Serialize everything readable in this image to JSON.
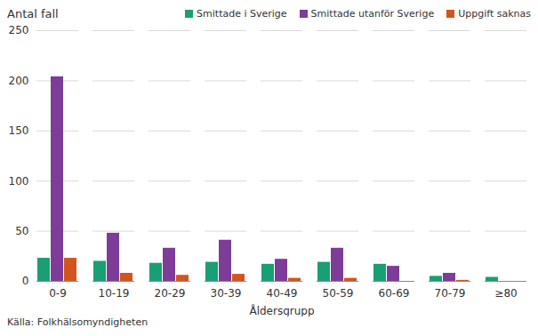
{
  "chart_data": {
    "type": "bar",
    "y_label": "Antal fall",
    "x_label": "Åldersgrupp",
    "source": "Källa: Folkhälsomyndigheten",
    "categories": [
      "0-9",
      "10-19",
      "20-29",
      "30-39",
      "40-49",
      "50-59",
      "60-69",
      "70-79",
      "≥80"
    ],
    "series": [
      {
        "name": "Smittade i Sverige",
        "color": "#1a9e74",
        "values": [
          23,
          20,
          18,
          19,
          17,
          19,
          17,
          5,
          4
        ]
      },
      {
        "name": "Smittade utanför Sverige",
        "color": "#7d3c98",
        "values": [
          204,
          48,
          33,
          41,
          22,
          33,
          15,
          8,
          0
        ]
      },
      {
        "name": "Uppgift saknas",
        "color": "#d3541c",
        "values": [
          23,
          8,
          6,
          7,
          3,
          3,
          0,
          1,
          0
        ]
      }
    ],
    "ylim": [
      0,
      250
    ],
    "yticks": [
      0,
      50,
      100,
      150,
      200,
      250
    ],
    "grid": true,
    "legend": "top-right"
  }
}
